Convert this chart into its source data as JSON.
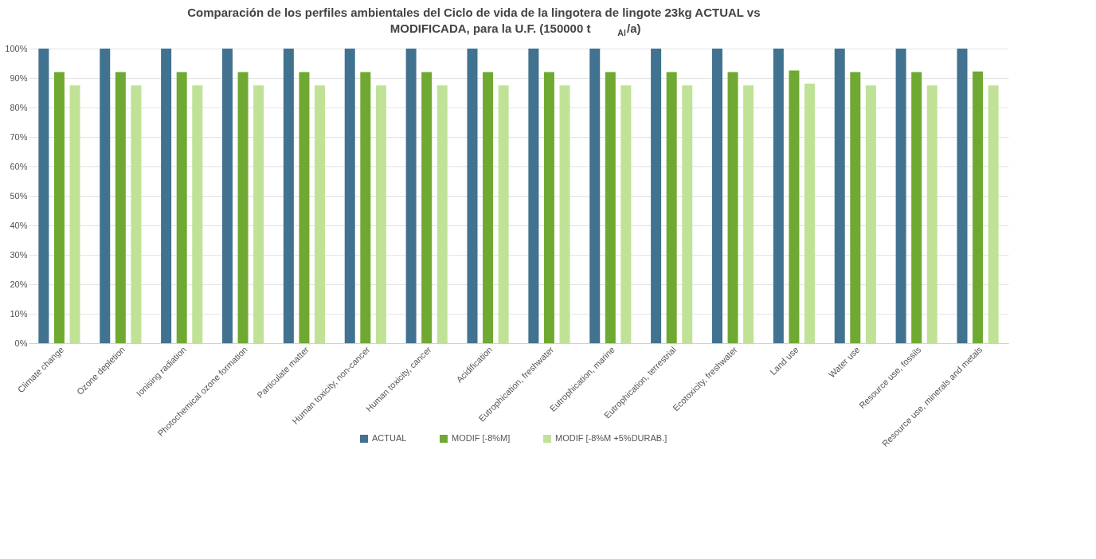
{
  "chart_data": {
    "type": "bar",
    "title": [
      "Comparación de los perfiles ambientales del Ciclo de vida de la lingotera de lingote 23kg ACTUAL vs",
      "MODIFICADA, para la U.F. (150000 t$_{Al}$/a)"
    ],
    "categories": [
      "Climate change",
      "Ozone depletion",
      "Ionising radiation",
      "Photochemical ozone formation",
      "Particulate matter",
      "Human toxicity, non-cancer",
      "Human toxicity, cancer",
      "Acidification",
      "Eutrophication, freshwater",
      "Eutrophication, marine",
      "Eutrophication, terrestrial",
      "Ecotoxicity, freshwater",
      "Land use",
      "Water use",
      "Resource use, fossils",
      "Resource use, minerals and metals"
    ],
    "series": [
      {
        "name": "ACTUAL",
        "color": "#41728f",
        "values": [
          100,
          100,
          100,
          100,
          100,
          100,
          100,
          100,
          100,
          100,
          100,
          100,
          100,
          100,
          100,
          100
        ]
      },
      {
        "name": "MODIF [-8%M]",
        "color": "#70a931",
        "values": [
          92,
          92,
          92,
          92,
          92,
          92,
          92,
          92,
          92,
          92,
          92,
          92,
          92.6,
          92,
          92,
          92.2
        ]
      },
      {
        "name": "MODIF [-8%M +5%DURAB.]",
        "color": "#c0e296",
        "values": [
          87.5,
          87.5,
          87.5,
          87.5,
          87.5,
          87.5,
          87.5,
          87.5,
          87.5,
          87.5,
          87.5,
          87.5,
          88.1,
          87.5,
          87.5,
          87.5
        ]
      }
    ],
    "ylim": [
      0,
      100
    ],
    "yticks": [
      {
        "value": 0,
        "label": "0%"
      },
      {
        "value": 10,
        "label": "10%"
      },
      {
        "value": 20,
        "label": "20%"
      },
      {
        "value": 30,
        "label": "30%"
      },
      {
        "value": 40,
        "label": "40%"
      },
      {
        "value": 50,
        "label": "50%"
      },
      {
        "value": 60,
        "label": "60%"
      },
      {
        "value": 70,
        "label": "70%"
      },
      {
        "value": 80,
        "label": "80%"
      },
      {
        "value": 90,
        "label": "90%"
      },
      {
        "value": 100,
        "label": "100%"
      }
    ],
    "grid": "y",
    "legend": "bottom"
  }
}
